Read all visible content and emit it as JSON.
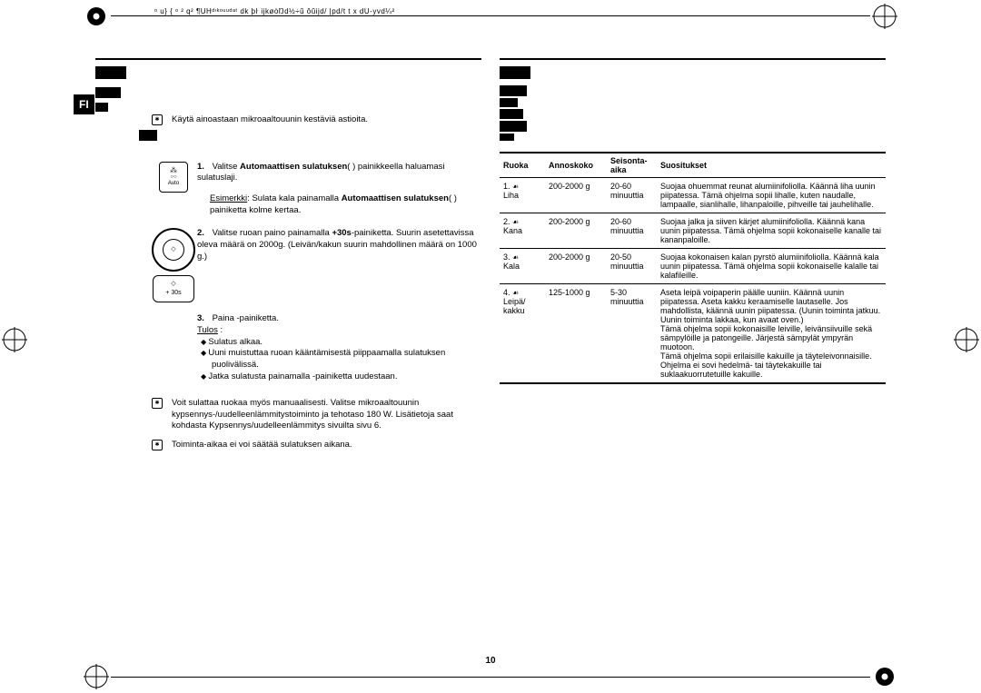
{
  "header_text": "ᵒ u} { ᵒ ² q² ¶UHᵈᶦᵏᵒᵘᵘᵈᵃᵗ dk þŀ ijkøòŊd½÷ŭ ôŭijd/ |pd/t t x dU-yvd¼²",
  "page_number": "10",
  "fi_label": "FI",
  "left_page": {
    "intro_note": "Käytä ainoastaan mikroaaltouunin kestäviä astioita.",
    "step1_a": "Valitse ",
    "step1_b": "Automaattisen sulatuksen",
    "step1_c": "(      ) painikkeella haluamasi sulatuslaji.",
    "step1_example_label": "Esimerkki",
    "step1_example_text": ": Sulata kala painamalla ",
    "step1_example_bold": "Automaattisen sulatuksen",
    "step1_example_tail": "(      ) painiketta kolme kertaa.",
    "step2_a": "Valitse ruoan paino painamalla ",
    "step2_b": "+30s",
    "step2_c": "-painiketta. Suurin asetettavissa oleva määrä on 2000g. (Leivän/kakun suurin mahdollinen määrä on 1000 g.)",
    "step3_a": "Paina       -painiketta.",
    "step3_result_label": "Tulos",
    "step3_bullet1": "Sulatus alkaa.",
    "step3_bullet2": "Uuni muistuttaa ruoan kääntämisestä piippaamalla sulatuksen puolivälissä.",
    "step3_bullet3": "Jatka sulatusta painamalla       -painiketta uudestaan.",
    "note1": "Voit sulattaa ruokaa myös manuaalisesti. Valitse mikroaaltouunin kypsennys-/uudelleenlämmitystoiminto ja tehotaso 180 W. Lisätietoja saat kohdasta Kypsennys/uudelleenlämmitys sivuilta sivu 6.",
    "note2": "Toiminta-aikaa ei voi säätää sulatuksen aikana.",
    "auto_label": "Auto",
    "plus30_label": "+ 30s"
  },
  "table": {
    "headers": {
      "c1": "Ruoka",
      "c2": "Annoskoko",
      "c3a": "Seisonta-",
      "c3b": "aika",
      "c4": "Suositukset"
    },
    "rows": [
      {
        "no": "1.",
        "name": "Liha",
        "size": "200-2000 g",
        "time": "20-60",
        "unit": "minuuttia",
        "rec": "Suojaa ohuemmat reunat alumiinifoliolla. Käännä liha uunin piipatessa. Tämä ohjelma sopii lihalle, kuten naudalle, lampaalle, sianlihalle, lihanpaloille, pihveille tai jauhelihalle."
      },
      {
        "no": "2.",
        "name": "Kana",
        "size": "200-2000 g",
        "time": "20-60",
        "unit": "minuuttia",
        "rec": "Suojaa jalka ja siiven kärjet alumiinifoliolla. Käännä kana uunin piipatessa. Tämä ohjelma sopii kokonaiselle kanalle tai kananpaloille."
      },
      {
        "no": "3.",
        "name": "Kala",
        "size": "200-2000 g",
        "time": "20-50",
        "unit": "minuuttia",
        "rec": "Suojaa kokonaisen kalan pyrstö alumiinifoliolla. Käännä kala uunin piipatessa. Tämä ohjelma sopii kokonaiselle kalalle tai kalafileille."
      },
      {
        "no": "4.",
        "name": "Leipä/\nkakku",
        "size": "125-1000 g",
        "time": "5-30",
        "unit": "minuuttia",
        "rec": "Aseta leipä voipaperin päälle uuniin. Käännä uunin piipatessa. Aseta kakku keraamiselle lautaselle. Jos mahdollista, käännä uunin piipatessa. (Uunin toiminta jatkuu. Uunin toiminta lakkaa, kun avaat oven.)\nTämä ohjelma sopii kokonaisille leiville, leivänsiivuille sekä sämpylöille ja patongeille. Järjestä sämpylät ympyrän muotoon.\nTämä ohjelma sopii erilaisille kakuille ja täyteleivonnaisille. Ohjelma ei sovi hedelmä- tai täytekakuille tai suklaakuorrutetuille kakuille."
      }
    ]
  }
}
